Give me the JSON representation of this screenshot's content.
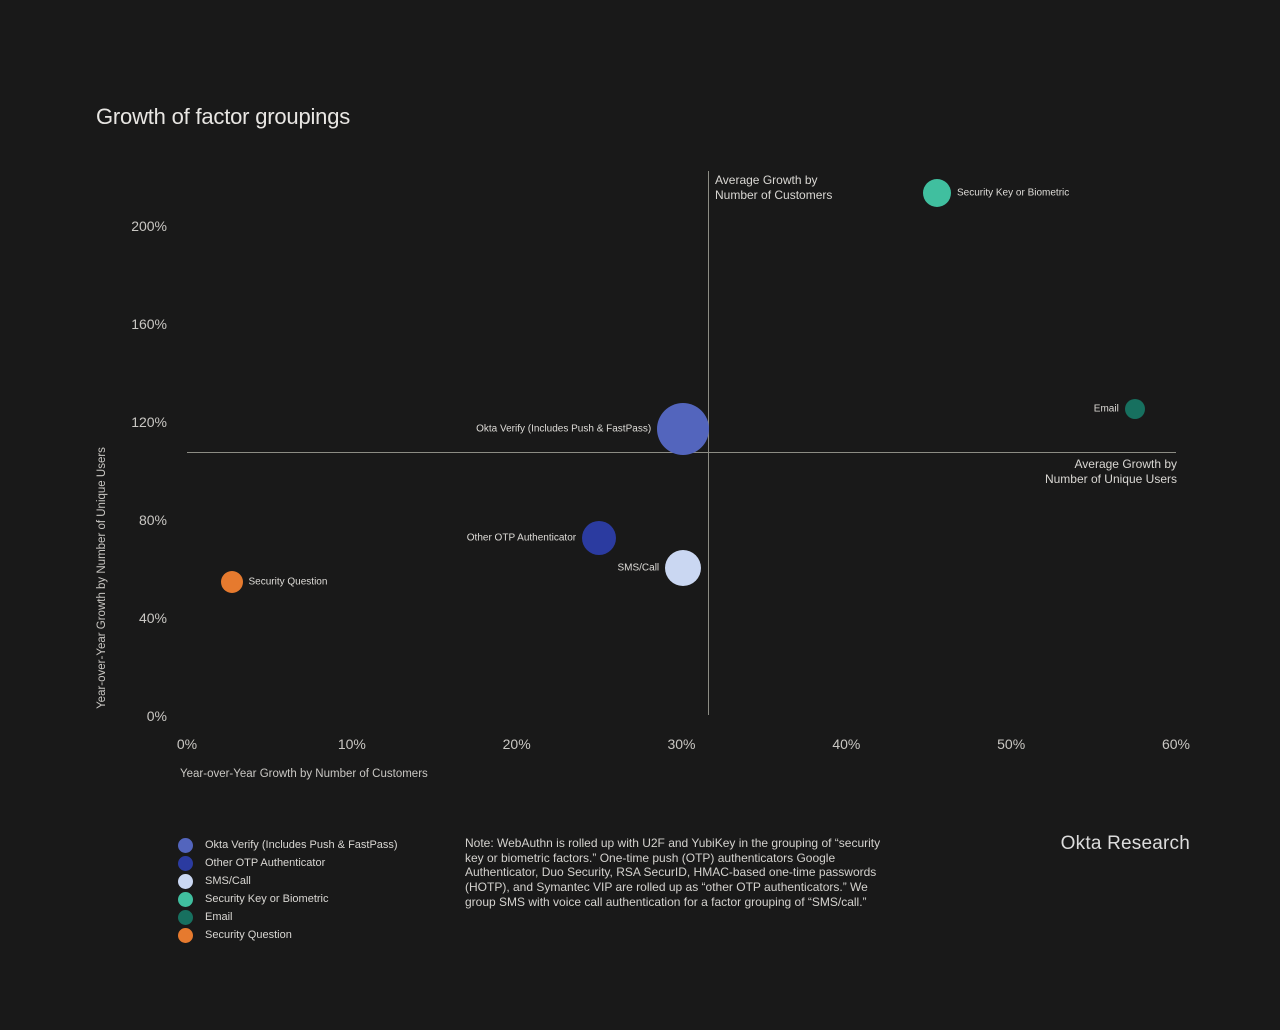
{
  "title": "Growth of factor groupings",
  "brand": "Okta Research",
  "note": "Note: WebAuthn is rolled up with U2F and YubiKey in the grouping of “security key or biometric factors.” One-time push (OTP) authenticators Google Authenticator, Duo Security, RSA SecurID, HMAC-based one-time passwords (HOTP), and Symantec VIP are rolled up as “other OTP authenticators.” We group SMS with voice call authentication for a factor grouping of “SMS/call.”",
  "chart_data": {
    "type": "scatter",
    "title": "Growth of factor groupings",
    "xlabel": "Year-over-Year Growth by Number of Customers",
    "ylabel": "Year-over-Year Growth by Number of Unique Users",
    "xlim": [
      0,
      60
    ],
    "ylim": [
      0,
      223
    ],
    "grid": false,
    "x_ticks": [
      "0%",
      "10%",
      "20%",
      "30%",
      "40%",
      "50%",
      "60%"
    ],
    "x_tick_values": [
      0,
      10,
      20,
      30,
      40,
      50,
      60
    ],
    "y_ticks": [
      "0%",
      "40%",
      "80%",
      "120%",
      "160%",
      "200%"
    ],
    "y_tick_values": [
      0,
      40,
      80,
      120,
      160,
      200
    ],
    "reference_lines": {
      "vertical": {
        "value": 31.6,
        "label_line1": "Average Growth by",
        "label_line2": "Number of Customers"
      },
      "horizontal": {
        "value": 107.8,
        "label_line1": "Average Growth by",
        "label_line2": "Number of Unique Users"
      }
    },
    "series": [
      {
        "name": "Okta Verify (Includes Push & FastPass)",
        "x": 30.1,
        "y": 117,
        "radius_px": 26,
        "color": "#5365BD",
        "label_side": "left"
      },
      {
        "name": "Other OTP Authenticator",
        "x": 25.0,
        "y": 72.5,
        "radius_px": 17,
        "color": "#2B3BA0",
        "label_side": "left"
      },
      {
        "name": "SMS/Call",
        "x": 30.1,
        "y": 60.5,
        "radius_px": 18,
        "color": "#CAD7F2",
        "label_side": "left"
      },
      {
        "name": "Security Key or Biometric",
        "x": 45.5,
        "y": 213.5,
        "radius_px": 14,
        "color": "#40BF9F",
        "label_side": "right"
      },
      {
        "name": "Email",
        "x": 57.5,
        "y": 125.5,
        "radius_px": 10,
        "color": "#17705F",
        "label_side": "left"
      },
      {
        "name": "Security Question",
        "x": 2.7,
        "y": 54.5,
        "radius_px": 11,
        "color": "#E67A2E",
        "label_side": "right"
      }
    ]
  },
  "legend": {
    "items": [
      {
        "label": "Okta Verify (Includes Push & FastPass)",
        "color": "#5365BD"
      },
      {
        "label": "Other OTP Authenticator",
        "color": "#2B3BA0"
      },
      {
        "label": "SMS/Call",
        "color": "#CAD7F2"
      },
      {
        "label": "Security Key or Biometric",
        "color": "#40BF9F"
      },
      {
        "label": "Email",
        "color": "#17705F"
      },
      {
        "label": "Security Question",
        "color": "#E67A2E"
      }
    ]
  },
  "colors": {
    "background": "#191919",
    "reference_line": "#8C8C84",
    "text": "#D9D7D3"
  }
}
